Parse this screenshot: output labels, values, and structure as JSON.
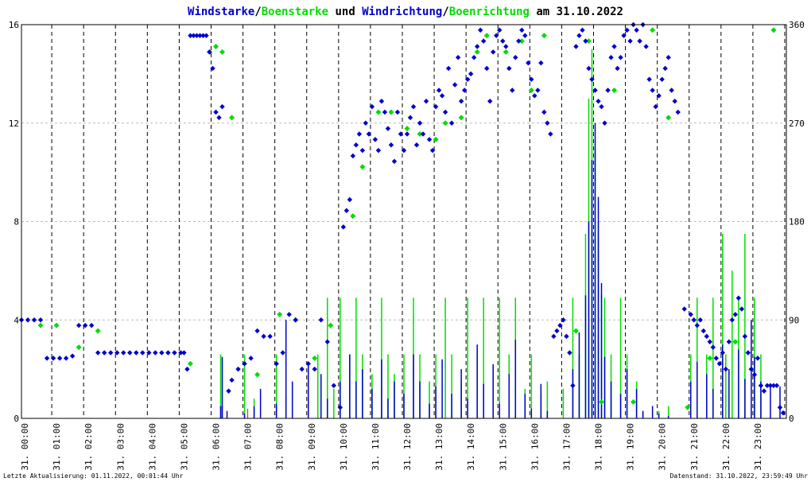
{
  "chart_data": {
    "type": "scatter",
    "title_parts": [
      {
        "text": "Windstarke",
        "color": "#0000cc"
      },
      {
        "text": "/",
        "color": "#000000"
      },
      {
        "text": "Boenstarke",
        "color": "#00dd00"
      },
      {
        "text": " und ",
        "color": "#000000"
      },
      {
        "text": "Windrichtung",
        "color": "#0000cc"
      },
      {
        "text": "/",
        "color": "#000000"
      },
      {
        "text": "Boenrichtung",
        "color": "#00dd00"
      },
      {
        "text": " am 31.10.2022",
        "color": "#000000"
      }
    ],
    "left_axis": {
      "ticks": [
        "0",
        "4",
        "8",
        "12",
        "16"
      ],
      "ylim": [
        0,
        16
      ]
    },
    "right_axis": {
      "ticks": [
        "0",
        "90",
        "180",
        "270",
        "360"
      ],
      "ylim": [
        0,
        360
      ]
    },
    "x_ticks": [
      "31. 00:00",
      "31. 01:00",
      "31. 02:00",
      "31. 03:00",
      "31. 04:00",
      "31. 05:00",
      "31. 06:00",
      "31. 07:00",
      "31. 08:00",
      "31. 09:00",
      "31. 10:00",
      "31. 11:00",
      "31. 12:00",
      "31. 13:00",
      "31. 14:00",
      "31. 15:00",
      "31. 16:00",
      "31. 17:00",
      "31. 18:00",
      "31. 19:00",
      "31. 20:00",
      "31. 21:00",
      "31. 22:00",
      "31. 23:00"
    ],
    "xlim_hours": [
      0,
      24
    ],
    "grid": true,
    "colors": {
      "wind": "#0000cc",
      "gust": "#00dd00",
      "grid": "#000000",
      "hgrid": "#bbbbbb",
      "marker": "#ff0000"
    },
    "series": [
      {
        "name": "Windstarke",
        "x": [
          6.25,
          6.3,
          6.45,
          7.0,
          7.3,
          7.5,
          8.0,
          8.3,
          8.5,
          9.0,
          9.4,
          9.6,
          10.0,
          10.3,
          10.5,
          10.7,
          11.0,
          11.3,
          11.5,
          11.7,
          12.0,
          12.3,
          12.5,
          12.8,
          13.0,
          13.2,
          13.5,
          13.8,
          14.0,
          14.3,
          14.5,
          14.8,
          15.0,
          15.3,
          15.5,
          15.8,
          16.0,
          16.3,
          16.5,
          16.8,
          17.0,
          17.3,
          17.5,
          17.7,
          17.8,
          17.9,
          18.0,
          18.1,
          18.2,
          18.3,
          18.5,
          18.8,
          19.0,
          19.3,
          19.5,
          19.8,
          20.0,
          20.3,
          20.8,
          21.0,
          21.2,
          21.5,
          21.7,
          22.0,
          22.2,
          22.5,
          22.7,
          22.9,
          23.0,
          23.2,
          23.5,
          23.8
        ],
        "values": [
          0.5,
          2.5,
          0.3,
          0.2,
          0.5,
          1.2,
          0.6,
          4.0,
          1.5,
          2.2,
          1.8,
          0.8,
          1.5,
          2.6,
          1.5,
          2.0,
          1.2,
          2.4,
          0.8,
          1.5,
          1.0,
          2.6,
          1.5,
          0.6,
          1.3,
          2.4,
          1.0,
          2.0,
          0.8,
          3.0,
          1.4,
          2.2,
          0.6,
          1.8,
          3.2,
          1.0,
          0.4,
          1.4,
          0.3,
          0.0,
          0.0,
          2.0,
          3.5,
          5.0,
          8.0,
          10.5,
          12.0,
          9.0,
          5.5,
          2.5,
          1.5,
          1.0,
          2.0,
          1.2,
          0.3,
          0.5,
          0.2,
          0.1,
          0.0,
          1.5,
          2.3,
          1.8,
          1.2,
          3.0,
          2.0,
          2.8,
          1.6,
          4.0,
          2.5,
          1.5,
          1.3,
          1.3
        ]
      },
      {
        "name": "Boenstarke",
        "x": [
          6.25,
          6.3,
          7.0,
          7.3,
          8.0,
          8.3,
          9.0,
          9.3,
          9.6,
          9.8,
          10.0,
          10.3,
          10.5,
          10.7,
          11.0,
          11.3,
          11.5,
          11.7,
          12.0,
          12.3,
          12.5,
          12.8,
          13.0,
          13.3,
          13.5,
          13.8,
          14.0,
          14.3,
          14.5,
          14.8,
          15.0,
          15.3,
          15.5,
          15.8,
          16.0,
          16.3,
          16.5,
          17.0,
          17.3,
          17.5,
          17.7,
          17.8,
          17.9,
          18.0,
          18.1,
          18.2,
          18.3,
          18.5,
          18.8,
          19.0,
          19.3,
          19.5,
          20.0,
          20.3,
          21.0,
          21.2,
          21.5,
          21.7,
          22.0,
          22.1,
          22.3,
          22.5,
          22.7,
          23.0,
          23.2
        ],
        "values": [
          2.6,
          0.5,
          2.6,
          0.8,
          2.6,
          0.9,
          0.3,
          2.6,
          4.9,
          1.2,
          4.9,
          2.6,
          4.9,
          2.6,
          1.8,
          4.9,
          2.6,
          1.8,
          2.6,
          4.9,
          2.6,
          1.5,
          2.6,
          4.9,
          2.6,
          1.5,
          4.9,
          2.6,
          4.9,
          1.8,
          4.9,
          2.6,
          4.9,
          1.2,
          2.6,
          1.0,
          1.5,
          1.2,
          4.9,
          2.6,
          7.5,
          13.0,
          15.0,
          11.0,
          8.0,
          5.0,
          4.9,
          2.6,
          4.9,
          2.6,
          1.5,
          0.3,
          0.3,
          0.5,
          2.6,
          4.9,
          2.6,
          4.9,
          7.5,
          2.6,
          6.0,
          4.9,
          7.5,
          4.9,
          2.6
        ]
      },
      {
        "name": "Windrichtung",
        "x": [
          0.0,
          0.2,
          0.4,
          0.6,
          0.8,
          1.0,
          1.2,
          1.4,
          1.6,
          1.8,
          2.0,
          2.2,
          2.4,
          2.6,
          2.8,
          3.0,
          3.2,
          3.4,
          3.6,
          3.8,
          4.0,
          4.2,
          4.4,
          4.6,
          4.8,
          5.0,
          5.1,
          5.2,
          5.3,
          5.4,
          5.5,
          5.6,
          5.7,
          5.8,
          5.9,
          6.0,
          6.1,
          6.2,
          6.3,
          6.5,
          6.6,
          6.8,
          7.0,
          7.2,
          7.4,
          7.6,
          7.8,
          8.0,
          8.2,
          8.4,
          8.6,
          8.8,
          9.0,
          9.2,
          9.4,
          9.6,
          9.8,
          10.0,
          10.1,
          10.2,
          10.3,
          10.4,
          10.5,
          10.6,
          10.7,
          10.8,
          10.9,
          11.0,
          11.1,
          11.2,
          11.3,
          11.4,
          11.5,
          11.6,
          11.7,
          11.8,
          11.9,
          12.0,
          12.1,
          12.2,
          12.3,
          12.4,
          12.5,
          12.6,
          12.7,
          12.8,
          12.9,
          13.0,
          13.1,
          13.2,
          13.3,
          13.4,
          13.5,
          13.6,
          13.7,
          13.8,
          13.9,
          14.0,
          14.1,
          14.2,
          14.3,
          14.4,
          14.5,
          14.6,
          14.7,
          14.8,
          14.9,
          15.0,
          15.1,
          15.2,
          15.3,
          15.4,
          15.5,
          15.6,
          15.7,
          15.8,
          15.9,
          16.0,
          16.1,
          16.2,
          16.3,
          16.4,
          16.5,
          16.6,
          16.7,
          16.8,
          16.9,
          17.0,
          17.1,
          17.2,
          17.3,
          17.4,
          17.5,
          17.6,
          17.7,
          17.8,
          17.9,
          18.0,
          18.1,
          18.2,
          18.3,
          18.4,
          18.5,
          18.6,
          18.7,
          18.8,
          18.9,
          19.0,
          19.1,
          19.2,
          19.3,
          19.4,
          19.5,
          19.6,
          19.7,
          19.8,
          19.9,
          20.0,
          20.1,
          20.2,
          20.3,
          20.4,
          20.5,
          20.6,
          20.8,
          21.0,
          21.1,
          21.2,
          21.3,
          21.4,
          21.5,
          21.6,
          21.7,
          21.8,
          21.9,
          22.0,
          22.1,
          22.2,
          22.3,
          22.4,
          22.5,
          22.6,
          22.7,
          22.8,
          22.9,
          23.0,
          23.1,
          23.2,
          23.3,
          23.4,
          23.5,
          23.6,
          23.7,
          23.8,
          23.9
        ],
        "values": [
          90,
          90,
          90,
          90,
          55,
          55,
          55,
          55,
          57,
          85,
          85,
          85,
          60,
          60,
          60,
          60,
          60,
          60,
          60,
          60,
          60,
          60,
          60,
          60,
          60,
          60,
          60,
          45,
          350,
          350,
          350,
          350,
          350,
          350,
          335,
          320,
          280,
          275,
          285,
          25,
          35,
          45,
          50,
          55,
          80,
          75,
          75,
          50,
          60,
          95,
          90,
          45,
          50,
          45,
          90,
          70,
          30,
          10,
          175,
          190,
          200,
          240,
          250,
          260,
          245,
          270,
          260,
          285,
          255,
          245,
          290,
          280,
          265,
          250,
          235,
          280,
          260,
          245,
          260,
          275,
          285,
          250,
          270,
          260,
          290,
          255,
          245,
          285,
          300,
          295,
          280,
          320,
          270,
          305,
          330,
          290,
          300,
          310,
          315,
          330,
          340,
          355,
          345,
          320,
          290,
          335,
          350,
          355,
          345,
          340,
          320,
          300,
          330,
          345,
          355,
          350,
          325,
          310,
          295,
          300,
          325,
          280,
          270,
          260,
          75,
          80,
          85,
          90,
          75,
          60,
          30,
          340,
          350,
          355,
          345,
          320,
          310,
          300,
          290,
          285,
          270,
          300,
          330,
          340,
          320,
          330,
          350,
          355,
          345,
          360,
          355,
          345,
          360,
          340,
          310,
          300,
          285,
          295,
          310,
          320,
          330,
          300,
          290,
          280,
          100,
          95,
          90,
          85,
          90,
          80,
          75,
          70,
          65,
          55,
          50,
          60,
          45,
          70,
          90,
          95,
          110,
          100,
          75,
          60,
          45,
          40,
          55,
          30,
          25,
          30,
          30,
          30,
          30,
          10,
          5
        ]
      },
      {
        "name": "Boenrichtung",
        "x": [
          0.6,
          1.1,
          1.8,
          2.4,
          5.3,
          5.9,
          6.1,
          6.3,
          6.6,
          7.4,
          8.1,
          8.6,
          9.2,
          9.7,
          10.4,
          10.7,
          11.2,
          11.6,
          12.1,
          12.5,
          13.0,
          13.3,
          13.8,
          14.3,
          14.6,
          15.2,
          15.7,
          16.0,
          16.4,
          17.4,
          17.8,
          18.2,
          18.6,
          19.2,
          19.8,
          20.3,
          20.9,
          21.6,
          22.4,
          22.9,
          23.6
        ],
        "values": [
          85,
          85,
          65,
          80,
          50,
          335,
          340,
          335,
          275,
          40,
          95,
          90,
          55,
          85,
          185,
          230,
          280,
          280,
          265,
          260,
          255,
          270,
          275,
          335,
          350,
          335,
          345,
          300,
          350,
          80,
          345,
          15,
          300,
          15,
          355,
          275,
          10,
          55,
          70,
          45,
          355
        ]
      }
    ]
  },
  "footer": {
    "left": "Letzte Aktualisierung: 01.11.2022, 00:01:44 Uhr",
    "right": "Datenstand: 31.10.2022, 23:59:49 Uhr"
  }
}
